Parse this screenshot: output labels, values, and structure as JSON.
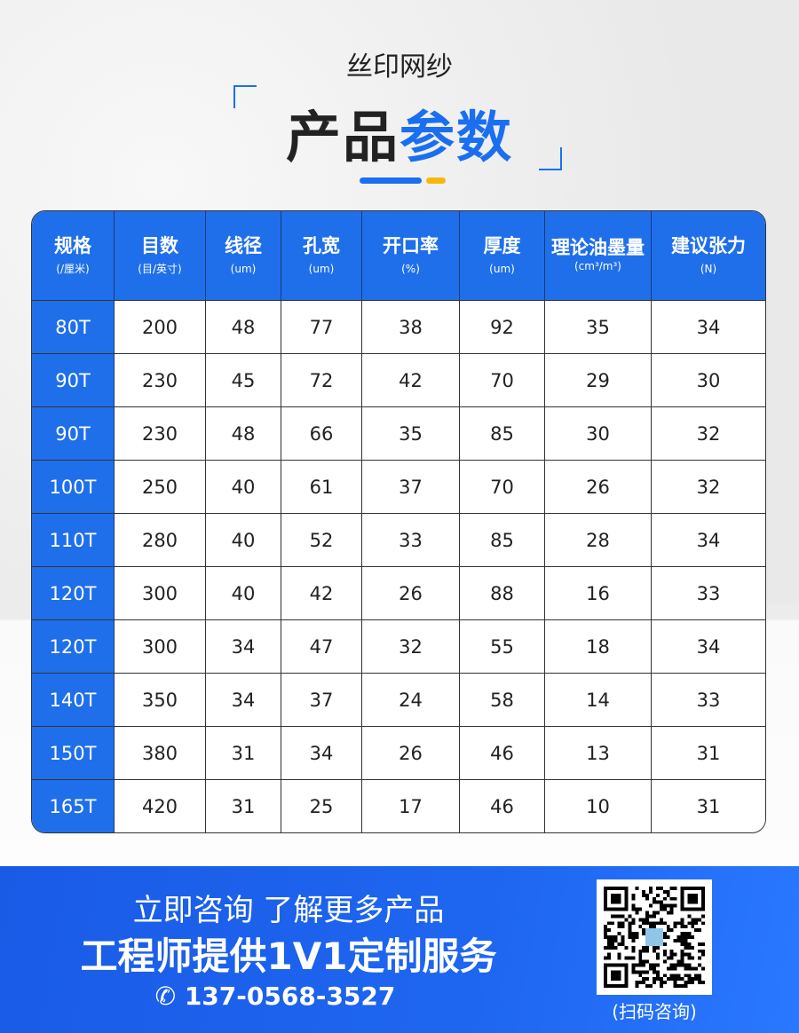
{
  "header": {
    "subtitle": "丝印网纱",
    "title_part1": "产品",
    "title_part2": "参数"
  },
  "table": {
    "columns": [
      {
        "label": "规格",
        "unit": "(/厘米)"
      },
      {
        "label": "目数",
        "unit": "(目/英寸)"
      },
      {
        "label": "线径",
        "unit": "(um)"
      },
      {
        "label": "孔宽",
        "unit": "(um)"
      },
      {
        "label": "开口率",
        "unit": "(%)"
      },
      {
        "label": "厚度",
        "unit": "(um)"
      },
      {
        "label": "理论油墨量",
        "unit": "(cm³/m³)"
      },
      {
        "label": "建议张力",
        "unit": "(N)"
      }
    ],
    "rows": [
      [
        "80T",
        "200",
        "48",
        "77",
        "38",
        "92",
        "35",
        "34"
      ],
      [
        "90T",
        "230",
        "45",
        "72",
        "42",
        "70",
        "29",
        "30"
      ],
      [
        "90T",
        "230",
        "48",
        "66",
        "35",
        "85",
        "30",
        "32"
      ],
      [
        "100T",
        "250",
        "40",
        "61",
        "37",
        "70",
        "26",
        "32"
      ],
      [
        "110T",
        "280",
        "40",
        "52",
        "33",
        "85",
        "28",
        "34"
      ],
      [
        "120T",
        "300",
        "40",
        "42",
        "26",
        "88",
        "16",
        "33"
      ],
      [
        "120T",
        "300",
        "34",
        "47",
        "32",
        "55",
        "18",
        "34"
      ],
      [
        "140T",
        "350",
        "34",
        "37",
        "24",
        "58",
        "14",
        "33"
      ],
      [
        "150T",
        "380",
        "31",
        "34",
        "26",
        "46",
        "13",
        "31"
      ],
      [
        "165T",
        "420",
        "31",
        "25",
        "17",
        "46",
        "10",
        "31"
      ]
    ]
  },
  "footer": {
    "line1": "立即咨询  了解更多产品",
    "line2": "工程师提供1V1定制服务",
    "phone": "137-0568-3527",
    "phone_icon": "phone-icon",
    "qr_label": "(扫码咨询)"
  },
  "colors": {
    "accent": "#1f6feb",
    "highlight": "#f6b80f"
  }
}
